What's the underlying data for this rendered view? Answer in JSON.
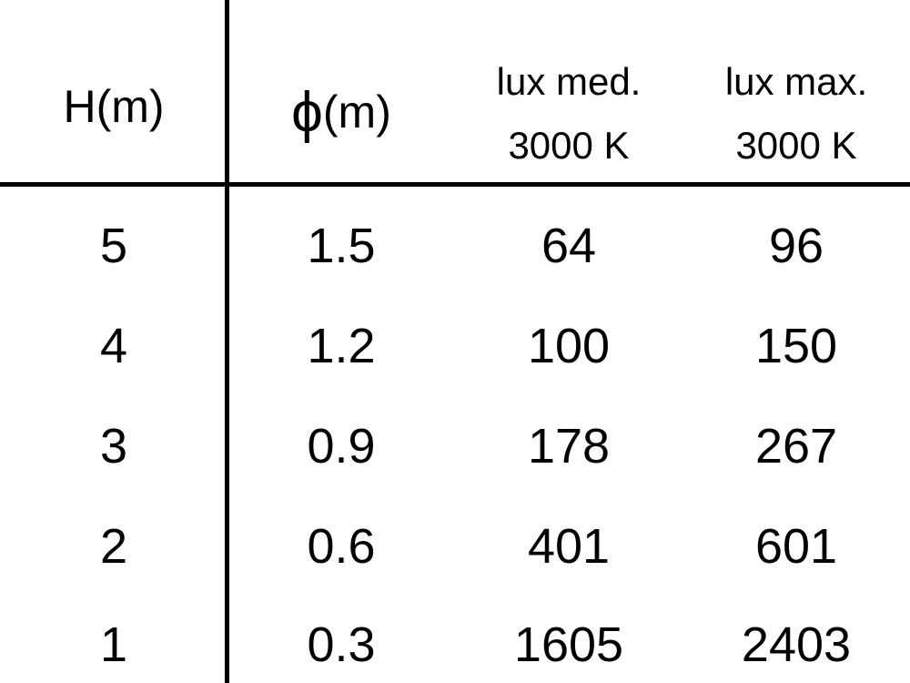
{
  "table": {
    "headers": [
      {
        "line1": "H(m)"
      },
      {
        "symbol": "ϕ",
        "line1": "(m)"
      },
      {
        "line1": "lux med.",
        "line2": "3000 K"
      },
      {
        "line1": "lux max.",
        "line2": "3000 K"
      }
    ],
    "rows": [
      [
        "5",
        "1.5",
        "64",
        "96"
      ],
      [
        "4",
        "1.2",
        "100",
        "150"
      ],
      [
        "3",
        "0.9",
        "178",
        "267"
      ],
      [
        "2",
        "0.6",
        "401",
        "601"
      ],
      [
        "1",
        "0.3",
        "1605",
        "2403"
      ]
    ]
  }
}
